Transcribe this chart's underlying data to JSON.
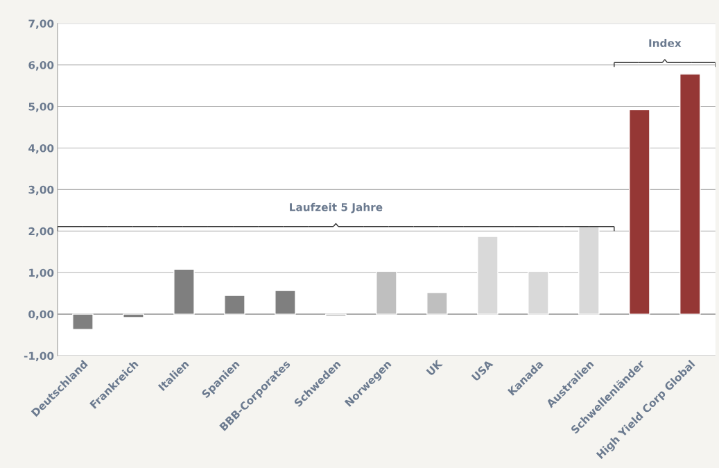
{
  "chart_data": {
    "type": "bar",
    "categories": [
      "Deutschland",
      "Frankreich",
      "Italien",
      "Spanien",
      "BBB-Corporates",
      "Schweden",
      "Norwegen",
      "UK",
      "USA",
      "Kanada",
      "Australien",
      "Schwellenländer",
      "High Yield Corp Global"
    ],
    "values": [
      -0.37,
      -0.08,
      1.08,
      0.45,
      0.57,
      -0.05,
      1.03,
      0.52,
      1.87,
      1.03,
      2.13,
      4.92,
      5.78
    ],
    "colors": [
      "#7f7f7f",
      "#7f7f7f",
      "#7f7f7f",
      "#7f7f7f",
      "#7f7f7f",
      "#bfbfbf",
      "#bfbfbf",
      "#bfbfbf",
      "#d9d9d9",
      "#d9d9d9",
      "#d9d9d9",
      "#953735",
      "#953735"
    ],
    "ylim": [
      -1,
      7
    ],
    "yticks": [
      {
        "value": -1,
        "label": "-1,00"
      },
      {
        "value": 0,
        "label": "0,00"
      },
      {
        "value": 1,
        "label": "1,00"
      },
      {
        "value": 2,
        "label": "2,00"
      },
      {
        "value": 3,
        "label": "3,00"
      },
      {
        "value": 4,
        "label": "4,00"
      },
      {
        "value": 5,
        "label": "5,00"
      },
      {
        "value": 6,
        "label": "6,00"
      },
      {
        "value": 7,
        "label": "7,00"
      }
    ],
    "grid": "y",
    "annotations": [
      "Laufzeit 5 Jahre",
      "Index"
    ]
  }
}
